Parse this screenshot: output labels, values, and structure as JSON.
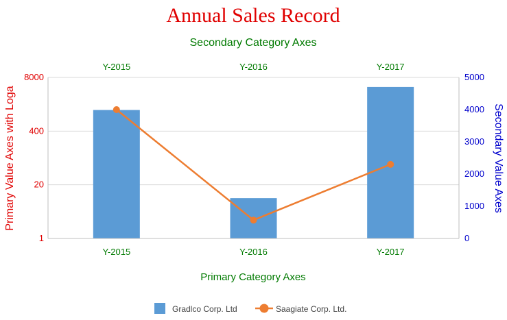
{
  "chart_data": {
    "type": "bar",
    "title": "Annual Sales Record",
    "categories": [
      "Y-2015",
      "Y-2016",
      "Y-2017"
    ],
    "secondary_categories": [
      "Y-2015",
      "Y-2016",
      "Y-2017"
    ],
    "xlabel": "Primary Category Axes",
    "x2label": "Secondary Category Axes",
    "ylabel": "Primary Value Axes with Loga",
    "y2label": "Secondary Value Axes",
    "y_scale": "log",
    "y_log_base": 20,
    "ylim": [
      1,
      8000
    ],
    "y_ticks": [
      "1",
      "20",
      "400",
      "8000"
    ],
    "y2lim": [
      0,
      5000
    ],
    "y2_ticks": [
      "0",
      "1000",
      "2000",
      "3000",
      "4000",
      "5000"
    ],
    "legend_position": "bottom",
    "grid": true,
    "series": [
      {
        "name": "Gradlco Corp. Ltd",
        "type": "bar",
        "axis": "primary",
        "color": "#5b9bd5",
        "values": [
          1300,
          9.5,
          4700
        ]
      },
      {
        "name": "Saagiate Corp. Ltd.",
        "type": "line",
        "axis": "secondary",
        "color": "#ed7d31",
        "values": [
          4000,
          570,
          2300
        ]
      }
    ]
  },
  "colors": {
    "title": "#e00000",
    "category_axis": "#007a00",
    "primary_axis": "#e00000",
    "secondary_axis": "#0000cc",
    "grid": "#d9d9d9"
  }
}
